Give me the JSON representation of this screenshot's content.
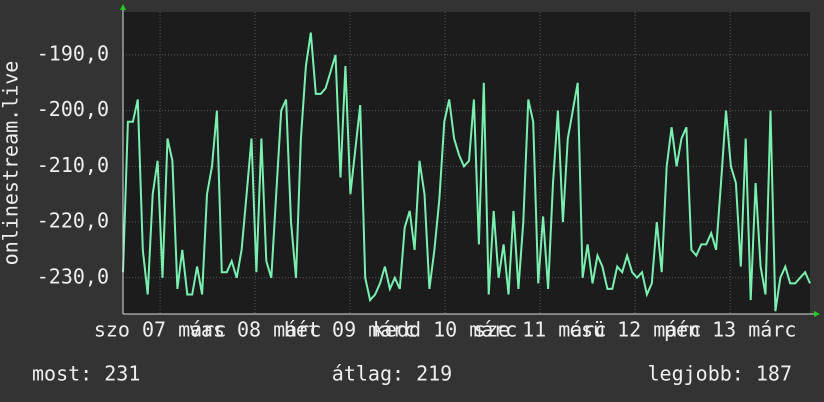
{
  "chart_data": {
    "type": "line",
    "y_label": "onlinestream.live",
    "color": "#7af0b0",
    "values": [
      -229,
      -202,
      -202,
      -198,
      -225,
      -233,
      -215,
      -209,
      -230,
      -205,
      -209,
      -232,
      -225,
      -233,
      -233,
      -228,
      -233,
      -215,
      -210,
      -200,
      -229,
      -229,
      -227,
      -230,
      -225,
      -215,
      -205,
      -229,
      -205,
      -227,
      -230,
      -215,
      -200,
      -198,
      -220,
      -230,
      -205,
      -192,
      -186,
      -197,
      -197,
      -196,
      -193,
      -190,
      -212,
      -192,
      -215,
      -207,
      -199,
      -230,
      -234,
      -233,
      -231,
      -228,
      -232,
      -230,
      -232,
      -221,
      -218,
      -225,
      -209,
      -215,
      -232,
      -225,
      -216,
      -202,
      -198,
      -205,
      -208,
      -210,
      -209,
      -198,
      -224,
      -195,
      -233,
      -218,
      -230,
      -224,
      -233,
      -218,
      -232,
      -220,
      -198,
      -202,
      -231,
      -219,
      -232,
      -213,
      -200,
      -220,
      -205,
      -200,
      -195,
      -230,
      -224,
      -231,
      -226,
      -228,
      -232,
      -232,
      -228,
      -229,
      -226,
      -229,
      -230,
      -229,
      -233,
      -231,
      -220,
      -229,
      -210,
      -203,
      -210,
      -205,
      -203,
      -225,
      -226,
      -224,
      -224,
      -222,
      -225,
      -213,
      -200,
      -210,
      -213,
      -228,
      -205,
      -234,
      -213,
      -228,
      -233,
      -200,
      -236,
      -230,
      -228,
      -231,
      -231,
      -230,
      -229,
      -231
    ],
    "ylim": [
      -236.5,
      -182.3
    ],
    "yticks": [
      {
        "value": -190,
        "label": "-190,0"
      },
      {
        "value": -200,
        "label": "-200,0"
      },
      {
        "value": -210,
        "label": "-210,0"
      },
      {
        "value": -220,
        "label": "-220,0"
      },
      {
        "value": -230,
        "label": "-230,0"
      }
    ],
    "xlim": [
      6.61,
      13.84
    ],
    "xticks": [
      {
        "value": 7,
        "label": "szo 07 márc"
      },
      {
        "value": 8,
        "label": "vas 08 márc"
      },
      {
        "value": 9,
        "label": "hét 09 márc"
      },
      {
        "value": 10,
        "label": "kedd 10 márc"
      },
      {
        "value": 11,
        "label": "sze 11 márc"
      },
      {
        "value": 12,
        "label": "csü 12 márc"
      },
      {
        "value": 13,
        "label": "pén 13 márc"
      }
    ],
    "grid": true,
    "stats": [
      "most: 231",
      "átlag: 219",
      "legjobb: 187"
    ]
  }
}
